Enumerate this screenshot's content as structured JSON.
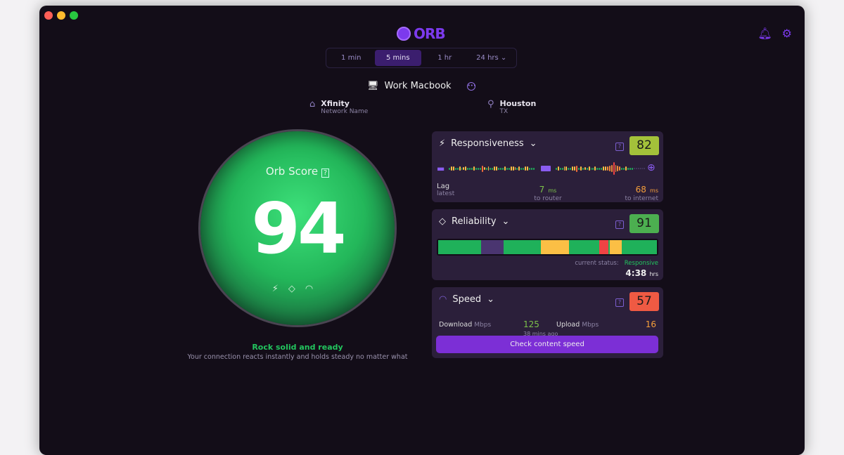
{
  "app": {
    "logo": "ORB"
  },
  "tabs": [
    {
      "label": "1 min"
    },
    {
      "label": "5 mins",
      "active": true
    },
    {
      "label": "1 hr"
    },
    {
      "label": "24 hrs",
      "dropdown": true
    }
  ],
  "device": {
    "name": "Work Macbook"
  },
  "network": {
    "name": "Xfinity",
    "label": "Network Name"
  },
  "location": {
    "city": "Houston",
    "region": "TX"
  },
  "orb": {
    "label": "Orb Score",
    "score": "94",
    "color": "#22c55e",
    "headline": "Rock solid and ready",
    "description": "Your connection reacts instantly and holds steady no matter what"
  },
  "responsiveness": {
    "title": "Responsiveness",
    "score": "82",
    "score_color": "#a3c13a",
    "lag_label": "Lag",
    "lag_sub": "latest",
    "router_value": "7",
    "router_unit": "ms",
    "router_label": "to router",
    "internet_value": "68",
    "internet_unit": "ms",
    "internet_label": "to internet"
  },
  "reliability": {
    "title": "Reliability",
    "score": "91",
    "score_color": "#4caf50",
    "status_label": "current status:",
    "status_value": "Responsive",
    "duration": "4:38",
    "duration_unit": "hrs",
    "timeline": [
      {
        "status": "good",
        "share": 19.5
      },
      {
        "status": "offline",
        "share": 10.5
      },
      {
        "status": "good",
        "share": 17
      },
      {
        "status": "warn",
        "share": 12.8
      },
      {
        "status": "good",
        "share": 13.7
      },
      {
        "status": "bad",
        "share": 4.2
      },
      {
        "status": "good",
        "share": 0.8
      },
      {
        "status": "warn",
        "share": 5.5
      },
      {
        "status": "good",
        "share": 16
      }
    ]
  },
  "speed": {
    "title": "Speed",
    "score": "57",
    "score_color": "#ef5a43",
    "download_label": "Download",
    "download_unit": "Mbps",
    "download_value": "125",
    "upload_label": "Upload",
    "upload_unit": "Mbps",
    "upload_value": "16",
    "updated": "38 mins ago",
    "button": "Check content speed"
  },
  "colors": {
    "good": "#1fb15a",
    "warn": "#fbbf45",
    "bad": "#ef4444",
    "offline": "#4a3570",
    "accent": "#7c3aed"
  }
}
